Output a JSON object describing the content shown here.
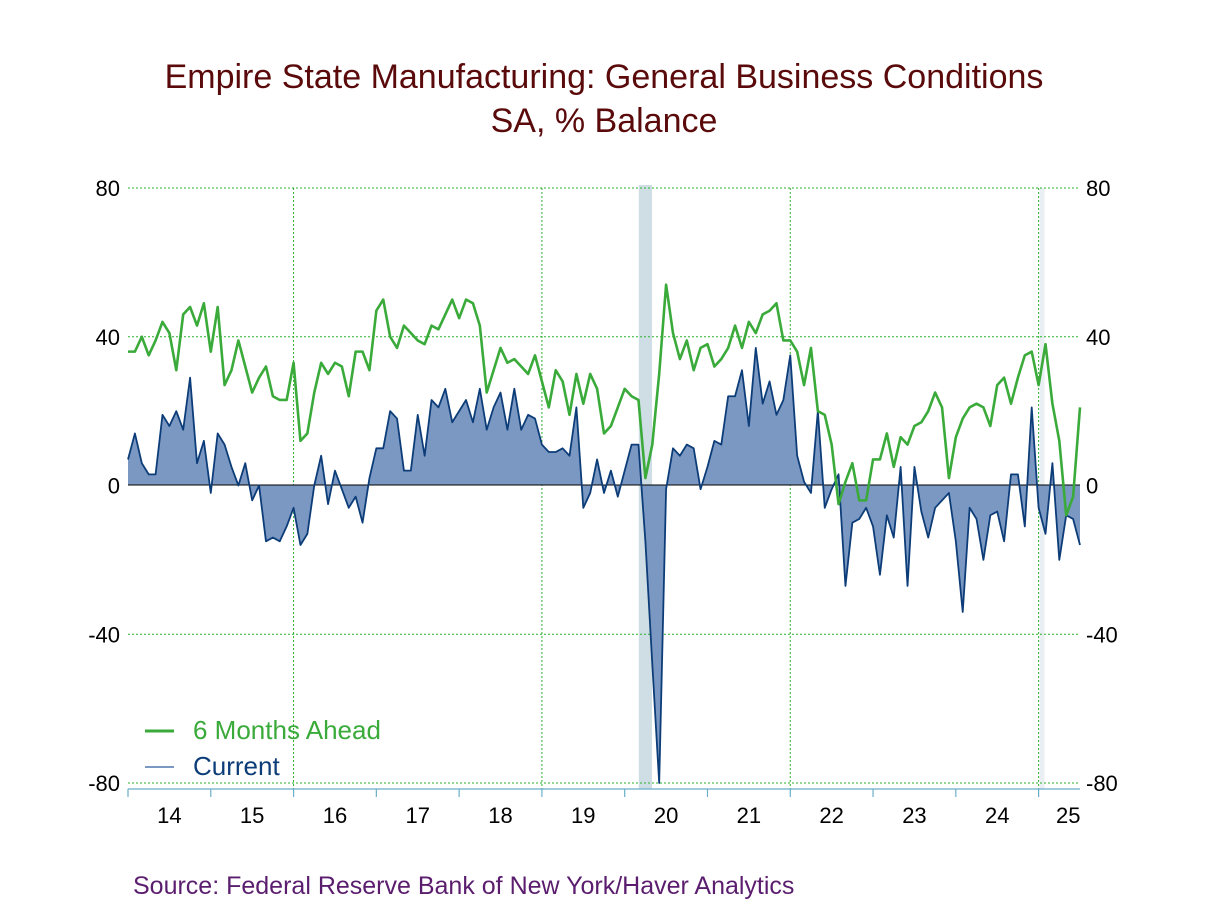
{
  "chart_data": {
    "type": "line",
    "title": "Empire State Manufacturing: General Business Conditions",
    "subtitle": "SA, % Balance",
    "source": "Source:  Federal Reserve Bank of New York/Haver Analytics",
    "ylim": [
      -80,
      80
    ],
    "yticks": [
      "80",
      "40",
      "0",
      "-40",
      "-80"
    ],
    "ytick_values": [
      80,
      40,
      0,
      -40,
      -80
    ],
    "xlim": [
      2014.0,
      2025.5
    ],
    "xtick_labels": [
      "14",
      "15",
      "16",
      "17",
      "18",
      "19",
      "20",
      "21",
      "22",
      "23",
      "24",
      "25"
    ],
    "grid_years": [
      2016,
      2019,
      2022,
      2025
    ],
    "recession_shading": [
      [
        2020.17,
        2020.33
      ]
    ],
    "colors": {
      "six_months_ahead": "#3aaa3a",
      "current_line": "#0d3d78",
      "current_fill": "#7b98c2",
      "recession": "#cfdee5",
      "grid": "#2bb02b",
      "title": "#5a0a0a",
      "source": "#5b1d6e"
    },
    "series": [
      {
        "name": "6 Months Ahead",
        "values": [
          36,
          36,
          40,
          35,
          39,
          44,
          41,
          31,
          46,
          48,
          43,
          49,
          36,
          48,
          27,
          31,
          39,
          32,
          25,
          29,
          32,
          24,
          23,
          23,
          33,
          12,
          14,
          25,
          33,
          30,
          33,
          32,
          24,
          36,
          36,
          31,
          47,
          50,
          40,
          37,
          43,
          41,
          39,
          38,
          43,
          42,
          46,
          50,
          45,
          50,
          49,
          43,
          25,
          31,
          37,
          33,
          34,
          32,
          30,
          35,
          28,
          21,
          31,
          28,
          19,
          30,
          22,
          30,
          26,
          14,
          16,
          21,
          26,
          24,
          23,
          2,
          11,
          30,
          54,
          41,
          34,
          39,
          31,
          37,
          38,
          32,
          34,
          37,
          43,
          37,
          44,
          41,
          46,
          47,
          49,
          39,
          39,
          36,
          27,
          37,
          20,
          19,
          11,
          -5,
          1,
          6,
          -4,
          -4,
          7,
          7,
          14,
          5,
          13,
          11,
          16,
          17,
          20,
          25,
          21,
          2,
          13,
          18,
          21,
          22,
          21,
          16,
          27,
          29,
          22,
          29,
          35,
          36,
          27,
          38,
          22,
          12,
          -8,
          -3,
          21
        ]
      },
      {
        "name": "Current",
        "values": [
          7,
          14,
          6,
          3,
          3,
          19,
          16,
          20,
          15,
          29,
          6,
          12,
          -2,
          14,
          11,
          5,
          0,
          6,
          -4,
          0,
          -15,
          -14,
          -15,
          -11,
          -6,
          -16,
          -13,
          0,
          8,
          -5,
          4,
          -1,
          -6,
          -3,
          -10,
          2,
          10,
          10,
          20,
          18,
          4,
          4,
          19,
          8,
          23,
          21,
          26,
          17,
          20,
          23,
          17,
          26,
          15,
          21,
          25,
          15,
          26,
          15,
          19,
          18,
          11,
          9,
          9,
          10,
          8,
          21,
          -6,
          -2,
          7,
          -2,
          4,
          -3,
          4,
          11,
          11,
          -15,
          -48,
          -80,
          -1,
          10,
          8,
          11,
          10,
          -1,
          5,
          12,
          11,
          24,
          24,
          31,
          16,
          37,
          22,
          28,
          19,
          23,
          35,
          8,
          1,
          -2,
          20,
          -6,
          -1,
          3,
          -27,
          -10,
          -9,
          -6,
          -11,
          -24,
          -8,
          -14,
          5,
          -27,
          5,
          -7,
          -14,
          -6,
          -4,
          -2,
          -15,
          -34,
          -6,
          -9,
          -20,
          -8,
          -7,
          -15,
          3,
          3,
          -11,
          21,
          -6,
          -13,
          6,
          -20,
          -8,
          -9,
          -16
        ]
      }
    ]
  }
}
